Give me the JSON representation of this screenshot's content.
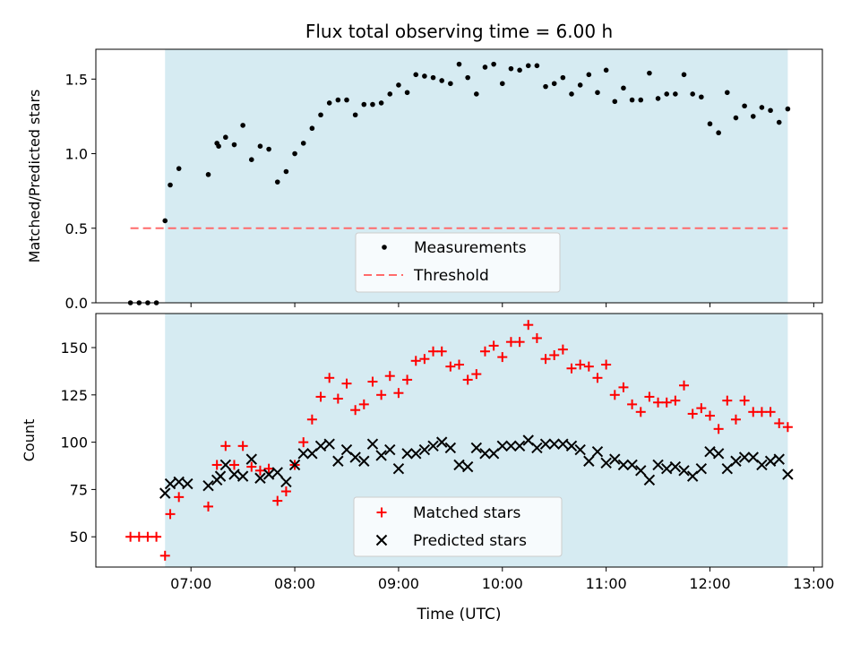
{
  "colors": {
    "shade": "#add8e6",
    "measurement": "#000000",
    "threshold": "#ff6b6b",
    "matched": "#ff0000",
    "predicted": "#000000"
  },
  "chart_data": [
    {
      "type": "scatter",
      "title": "Flux total observing time = 6.00 h",
      "xlabel": "",
      "ylabel": "Matched/Predicted stars",
      "ylim": [
        0,
        1.7
      ],
      "yticks": [
        "0.0",
        "0.5",
        "1.0",
        "1.5"
      ],
      "xticklabels_shown": false,
      "legend_placement": "lower-center",
      "shaded_interval": [
        "06:45",
        "12:45"
      ],
      "threshold": {
        "name": "Threshold",
        "value": 0.5,
        "x": [
          "06:25",
          "12:45"
        ]
      },
      "series": [
        {
          "name": "Measurements",
          "x": [
            "06:25",
            "06:30",
            "06:35",
            "06:40",
            "06:45",
            "06:48",
            "06:53",
            "07:10",
            "07:15",
            "07:16",
            "07:20",
            "07:25",
            "07:30",
            "07:35",
            "07:40",
            "07:45",
            "07:50",
            "07:55",
            "08:00",
            "08:05",
            "08:10",
            "08:15",
            "08:20",
            "08:25",
            "08:30",
            "08:35",
            "08:40",
            "08:45",
            "08:50",
            "08:55",
            "09:00",
            "09:05",
            "09:10",
            "09:15",
            "09:20",
            "09:25",
            "09:30",
            "09:35",
            "09:40",
            "09:45",
            "09:50",
            "09:55",
            "10:00",
            "10:05",
            "10:10",
            "10:15",
            "10:20",
            "10:25",
            "10:30",
            "10:35",
            "10:40",
            "10:45",
            "10:50",
            "10:55",
            "11:00",
            "11:05",
            "11:10",
            "11:15",
            "11:20",
            "11:25",
            "11:30",
            "11:35",
            "11:40",
            "11:45",
            "11:50",
            "11:55",
            "12:00",
            "12:05",
            "12:10",
            "12:15",
            "12:20",
            "12:25",
            "12:30",
            "12:35",
            "12:40",
            "12:45"
          ],
          "y": [
            0,
            0,
            0,
            0,
            0.55,
            0.79,
            0.9,
            0.86,
            1.07,
            1.05,
            1.11,
            1.06,
            1.19,
            0.96,
            1.05,
            1.03,
            0.81,
            0.88,
            1.0,
            1.07,
            1.17,
            1.26,
            1.34,
            1.36,
            1.36,
            1.26,
            1.33,
            1.33,
            1.34,
            1.4,
            1.46,
            1.41,
            1.53,
            1.52,
            1.51,
            1.49,
            1.47,
            1.6,
            1.51,
            1.4,
            1.58,
            1.6,
            1.47,
            1.57,
            1.56,
            1.59,
            1.59,
            1.45,
            1.47,
            1.51,
            1.4,
            1.46,
            1.53,
            1.41,
            1.56,
            1.35,
            1.44,
            1.36,
            1.36,
            1.54,
            1.37,
            1.4,
            1.4,
            1.53,
            1.4,
            1.38,
            1.2,
            1.14,
            1.41,
            1.24,
            1.32,
            1.25,
            1.31,
            1.29,
            1.21,
            1.3
          ]
        }
      ]
    },
    {
      "type": "scatter",
      "title": "",
      "xlabel": "Time (UTC)",
      "ylabel": "Count",
      "ylim": [
        34,
        168
      ],
      "yticks": [
        "50",
        "75",
        "100",
        "125",
        "150"
      ],
      "xticks": [
        "07:00",
        "08:00",
        "09:00",
        "10:00",
        "11:00",
        "12:00",
        "13:00"
      ],
      "legend_placement": "lower-center",
      "shaded_interval": [
        "06:45",
        "12:45"
      ],
      "series": [
        {
          "name": "Matched stars",
          "marker": "+",
          "x": [
            "06:25",
            "06:30",
            "06:35",
            "06:40",
            "06:45",
            "06:48",
            "06:53",
            "07:10",
            "07:15",
            "07:20",
            "07:25",
            "07:30",
            "07:35",
            "07:40",
            "07:45",
            "07:50",
            "07:55",
            "08:00",
            "08:05",
            "08:10",
            "08:15",
            "08:20",
            "08:25",
            "08:30",
            "08:35",
            "08:40",
            "08:45",
            "08:50",
            "08:55",
            "09:00",
            "09:05",
            "09:10",
            "09:15",
            "09:20",
            "09:25",
            "09:30",
            "09:35",
            "09:40",
            "09:45",
            "09:50",
            "09:55",
            "10:00",
            "10:05",
            "10:10",
            "10:15",
            "10:20",
            "10:25",
            "10:30",
            "10:35",
            "10:40",
            "10:45",
            "10:50",
            "10:55",
            "11:00",
            "11:05",
            "11:10",
            "11:15",
            "11:20",
            "11:25",
            "11:30",
            "11:35",
            "11:40",
            "11:45",
            "11:50",
            "11:55",
            "12:00",
            "12:05",
            "12:10",
            "12:15",
            "12:20",
            "12:25",
            "12:30",
            "12:35",
            "12:40",
            "12:45"
          ],
          "y": [
            50,
            50,
            50,
            50,
            40,
            62,
            71,
            66,
            88,
            98,
            88,
            98,
            87,
            85,
            86,
            69,
            74,
            88,
            100,
            112,
            124,
            134,
            123,
            131,
            117,
            120,
            132,
            125,
            135,
            126,
            133,
            143,
            144,
            148,
            148,
            140,
            141,
            133,
            136,
            148,
            151,
            145,
            153,
            153,
            162,
            155,
            144,
            146,
            149,
            139,
            141,
            140,
            134,
            141,
            125,
            129,
            120,
            116,
            124,
            121,
            121,
            122,
            130,
            115,
            118,
            114,
            107,
            122,
            112,
            122,
            116,
            116,
            116,
            110,
            108
          ]
        },
        {
          "name": "Predicted stars",
          "marker": "x",
          "x": [
            "06:45",
            "06:48",
            "06:53",
            "06:58",
            "07:10",
            "07:15",
            "07:17",
            "07:20",
            "07:25",
            "07:30",
            "07:35",
            "07:40",
            "07:45",
            "07:50",
            "07:55",
            "08:00",
            "08:05",
            "08:10",
            "08:15",
            "08:20",
            "08:25",
            "08:30",
            "08:35",
            "08:40",
            "08:45",
            "08:50",
            "08:55",
            "09:00",
            "09:05",
            "09:10",
            "09:15",
            "09:20",
            "09:25",
            "09:30",
            "09:35",
            "09:40",
            "09:45",
            "09:50",
            "09:55",
            "10:00",
            "10:05",
            "10:10",
            "10:15",
            "10:20",
            "10:25",
            "10:30",
            "10:35",
            "10:40",
            "10:45",
            "10:50",
            "10:55",
            "11:00",
            "11:05",
            "11:10",
            "11:15",
            "11:20",
            "11:25",
            "11:30",
            "11:35",
            "11:40",
            "11:45",
            "11:50",
            "11:55",
            "12:00",
            "12:05",
            "12:10",
            "12:15",
            "12:20",
            "12:25",
            "12:30",
            "12:35",
            "12:40",
            "12:45"
          ],
          "y": [
            73,
            78,
            79,
            78,
            77,
            80,
            82,
            88,
            83,
            82,
            91,
            81,
            83,
            84,
            79,
            88,
            94,
            94,
            98,
            99,
            90,
            96,
            92,
            90,
            99,
            93,
            96,
            86,
            94,
            94,
            96,
            98,
            100,
            97,
            88,
            87,
            97,
            94,
            94,
            98,
            98,
            98,
            101,
            97,
            99,
            99,
            99,
            98,
            96,
            90,
            95,
            89,
            91,
            88,
            88,
            85,
            80,
            88,
            86,
            87,
            85,
            82,
            86,
            95,
            94,
            86,
            90,
            92,
            92,
            88,
            90,
            91,
            83
          ]
        }
      ]
    }
  ]
}
